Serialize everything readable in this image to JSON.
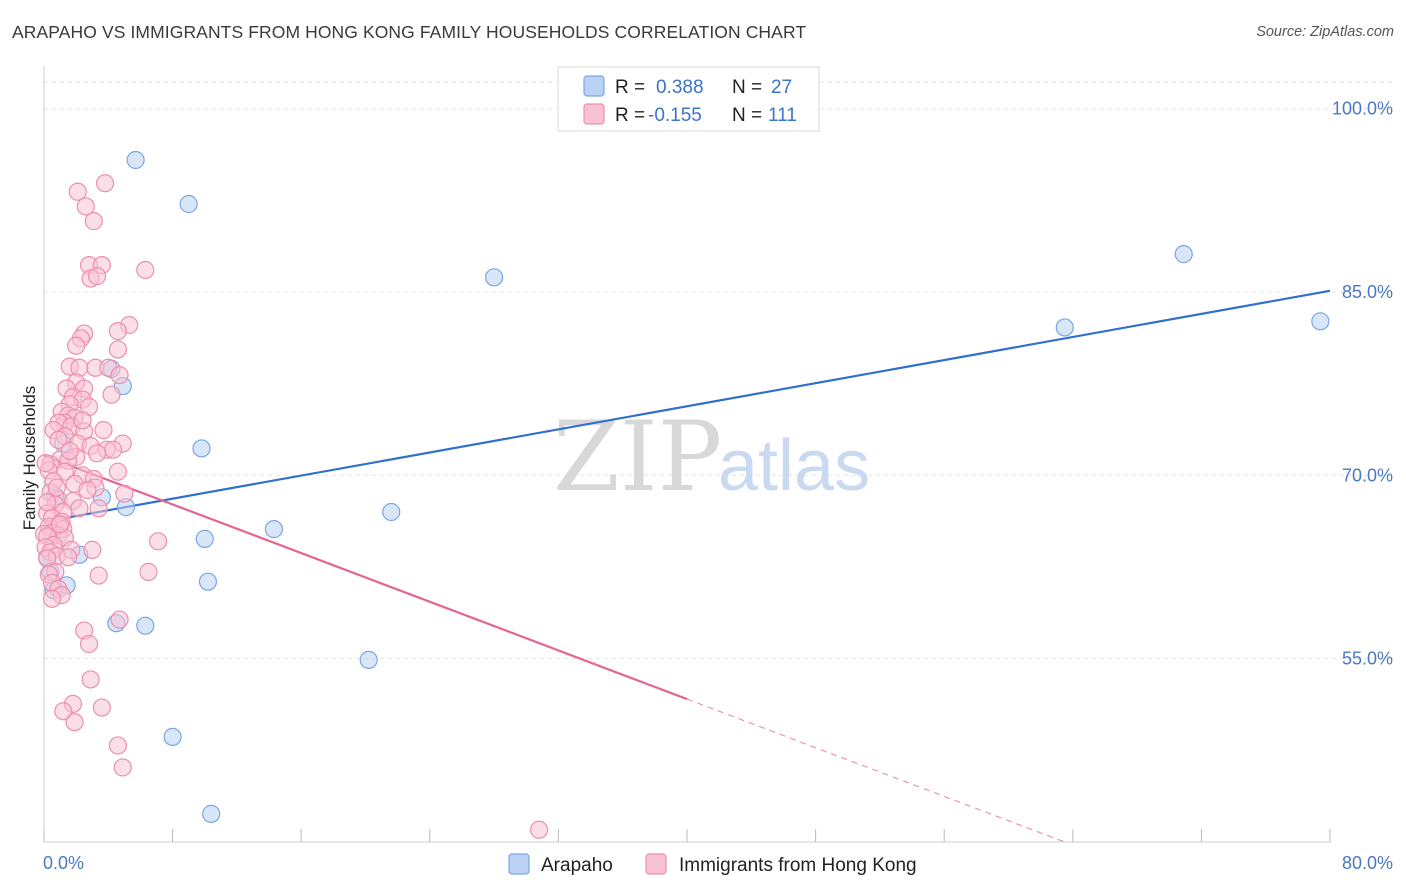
{
  "title": "ARAPAHO VS IMMIGRANTS FROM HONG KONG FAMILY HOUSEHOLDS CORRELATION CHART",
  "source": "Source: ZipAtlas.com",
  "watermark": {
    "zip": "ZIP",
    "atlas": "atlas"
  },
  "colors": {
    "arapaho_fill": "#b9d1f3",
    "arapaho_stroke": "#7aa6e3",
    "arapaho_line": "#2f6fcd",
    "hk_fill": "#f9c2d3",
    "hk_stroke": "#ec8fae",
    "hk_line": "#e46592",
    "grid": "#e4e4e4",
    "tick_text": "#4a78c4"
  },
  "legend": {
    "r_label": "R =",
    "n_label": "N =",
    "arapaho": {
      "r": "0.388",
      "n": "27"
    },
    "hk": {
      "r": "-0.155",
      "n": "111"
    }
  },
  "chart_data": {
    "type": "scatter",
    "xlabel": "",
    "ylabel": "Family Households",
    "xlim": [
      0,
      80
    ],
    "ylim": [
      40,
      103
    ],
    "x_tick_labels": [
      "0.0%",
      "80.0%"
    ],
    "y_ticks": [
      55,
      70,
      85,
      100
    ],
    "y_tick_labels": [
      "55.0%",
      "70.0%",
      "85.0%",
      "100.0%"
    ],
    "series": [
      {
        "name": "Arapaho",
        "points": [
          [
            5.7,
            95.8
          ],
          [
            9.0,
            92.2
          ],
          [
            28.0,
            86.2
          ],
          [
            70.9,
            88.1
          ],
          [
            79.4,
            82.6
          ],
          [
            63.5,
            82.1
          ],
          [
            4.2,
            78.7
          ],
          [
            4.9,
            77.3
          ],
          [
            1.2,
            72.6
          ],
          [
            9.8,
            72.2
          ],
          [
            0.7,
            68.3
          ],
          [
            3.6,
            68.2
          ],
          [
            5.1,
            67.4
          ],
          [
            21.6,
            67.0
          ],
          [
            14.3,
            65.6
          ],
          [
            10.0,
            64.8
          ],
          [
            2.2,
            63.5
          ],
          [
            0.2,
            63.3
          ],
          [
            0.4,
            62.1
          ],
          [
            10.2,
            61.3
          ],
          [
            1.4,
            61.0
          ],
          [
            0.6,
            60.6
          ],
          [
            4.5,
            57.9
          ],
          [
            6.3,
            57.7
          ],
          [
            20.2,
            54.9
          ],
          [
            8.0,
            48.6
          ],
          [
            10.4,
            42.3
          ]
        ],
        "trend": {
          "x": [
            0,
            80
          ],
          "y": [
            66.2,
            85.1
          ],
          "solid_to": 80
        }
      },
      {
        "name": "Immigrants from Hong Kong",
        "points": [
          [
            3.8,
            93.9
          ],
          [
            2.1,
            93.2
          ],
          [
            2.6,
            92.0
          ],
          [
            3.1,
            90.8
          ],
          [
            2.8,
            87.2
          ],
          [
            3.6,
            87.2
          ],
          [
            6.3,
            86.8
          ],
          [
            2.9,
            86.1
          ],
          [
            3.3,
            86.3
          ],
          [
            5.3,
            82.3
          ],
          [
            4.6,
            81.8
          ],
          [
            2.5,
            81.6
          ],
          [
            2.3,
            81.2
          ],
          [
            2.0,
            80.6
          ],
          [
            4.6,
            80.3
          ],
          [
            1.6,
            78.9
          ],
          [
            2.2,
            78.8
          ],
          [
            3.2,
            78.8
          ],
          [
            4.0,
            78.8
          ],
          [
            4.7,
            78.2
          ],
          [
            2.0,
            77.6
          ],
          [
            1.4,
            77.1
          ],
          [
            2.5,
            77.1
          ],
          [
            4.2,
            76.6
          ],
          [
            1.8,
            76.4
          ],
          [
            2.4,
            76.2
          ],
          [
            1.6,
            75.8
          ],
          [
            2.8,
            75.6
          ],
          [
            1.1,
            75.2
          ],
          [
            1.5,
            74.9
          ],
          [
            1.9,
            74.7
          ],
          [
            1.3,
            74.3
          ],
          [
            0.9,
            74.3
          ],
          [
            1.7,
            74.0
          ],
          [
            0.6,
            73.7
          ],
          [
            2.5,
            73.6
          ],
          [
            3.7,
            73.7
          ],
          [
            1.3,
            73.2
          ],
          [
            0.9,
            72.9
          ],
          [
            2.1,
            72.6
          ],
          [
            4.9,
            72.6
          ],
          [
            2.9,
            72.4
          ],
          [
            3.9,
            72.1
          ],
          [
            4.3,
            72.1
          ],
          [
            3.3,
            71.8
          ],
          [
            2.0,
            71.5
          ],
          [
            1.0,
            71.3
          ],
          [
            1.5,
            71.2
          ],
          [
            0.4,
            70.9
          ],
          [
            0.3,
            70.4
          ],
          [
            4.6,
            70.3
          ],
          [
            1.3,
            70.3
          ],
          [
            2.4,
            70.0
          ],
          [
            3.1,
            69.7
          ],
          [
            0.6,
            69.5
          ],
          [
            1.9,
            69.3
          ],
          [
            3.2,
            69.0
          ],
          [
            2.7,
            68.8
          ],
          [
            0.4,
            68.6
          ],
          [
            5.0,
            68.5
          ],
          [
            0.9,
            68.0
          ],
          [
            1.8,
            67.9
          ],
          [
            0.7,
            67.6
          ],
          [
            2.2,
            67.3
          ],
          [
            3.4,
            67.3
          ],
          [
            1.2,
            67.0
          ],
          [
            0.2,
            66.9
          ],
          [
            0.5,
            66.5
          ],
          [
            1.1,
            66.2
          ],
          [
            0.9,
            65.9
          ],
          [
            0.3,
            65.8
          ],
          [
            1.2,
            65.6
          ],
          [
            0.5,
            65.3
          ],
          [
            0.0,
            65.2
          ],
          [
            0.9,
            65.1
          ],
          [
            0.2,
            65.0
          ],
          [
            1.3,
            64.9
          ],
          [
            7.1,
            64.6
          ],
          [
            0.6,
            64.3
          ],
          [
            0.1,
            64.1
          ],
          [
            1.7,
            63.9
          ],
          [
            3.0,
            63.9
          ],
          [
            0.4,
            63.7
          ],
          [
            0.8,
            63.4
          ],
          [
            0.2,
            63.2
          ],
          [
            1.5,
            63.3
          ],
          [
            6.5,
            62.1
          ],
          [
            0.7,
            62.1
          ],
          [
            0.3,
            61.9
          ],
          [
            3.4,
            61.8
          ],
          [
            0.5,
            61.2
          ],
          [
            0.9,
            60.7
          ],
          [
            1.1,
            60.2
          ],
          [
            0.5,
            59.9
          ],
          [
            4.7,
            58.2
          ],
          [
            2.5,
            57.3
          ],
          [
            2.8,
            56.2
          ],
          [
            2.9,
            53.3
          ],
          [
            1.8,
            51.3
          ],
          [
            1.2,
            50.7
          ],
          [
            3.6,
            51.0
          ],
          [
            1.9,
            49.8
          ],
          [
            4.6,
            47.9
          ],
          [
            4.9,
            46.1
          ],
          [
            30.8,
            41.0
          ],
          [
            0.1,
            71.0
          ],
          [
            0.8,
            69.0
          ],
          [
            1.6,
            72.0
          ],
          [
            2.4,
            74.5
          ],
          [
            0.2,
            67.8
          ],
          [
            1.0,
            66.0
          ]
        ],
        "trend": {
          "x": [
            0,
            63.5
          ],
          "y": [
            71.6,
            40.0
          ],
          "solid_to": 40
        }
      }
    ],
    "legend_bottom": [
      "Arapaho",
      "Immigrants from Hong Kong"
    ]
  }
}
